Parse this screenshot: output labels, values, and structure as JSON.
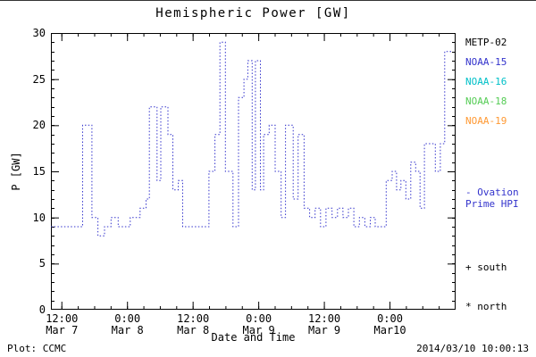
{
  "title": "Hemispheric Power [GW]",
  "footer": {
    "left": "Plot: CCMC",
    "right": "2014/03/10 10:00:13"
  },
  "legend": {
    "satellites": [
      {
        "label": "METP-02",
        "color": "#000000"
      },
      {
        "label": "NOAA-15",
        "color": "#3333CC"
      },
      {
        "label": "NOAA-16",
        "color": "#00C0C8"
      },
      {
        "label": "NOAA-18",
        "color": "#55CC55"
      },
      {
        "label": "NOAA-19",
        "color": "#FF9933"
      }
    ],
    "model": {
      "line1": "- Ovation",
      "line2": "Prime HPI",
      "color": "#3333CC"
    },
    "markers": [
      {
        "label": "+ south"
      },
      {
        "label": "* north"
      }
    ]
  },
  "chart_data": {
    "type": "line",
    "title": "Hemispheric Power [GW]",
    "xlabel": "Date and Time",
    "ylabel": "P [GW]",
    "ylim": [
      0,
      30
    ],
    "yticks": [
      0,
      5,
      10,
      15,
      20,
      25,
      30
    ],
    "y_minor_step": 1,
    "xlim_hours": [
      10,
      84
    ],
    "x_minor_step_hours": 3,
    "xticks": [
      {
        "hour": 12,
        "time": "12:00",
        "date": "Mar 7"
      },
      {
        "hour": 24,
        "time": "0:00",
        "date": "Mar 8"
      },
      {
        "hour": 36,
        "time": "12:00",
        "date": "Mar 8"
      },
      {
        "hour": 48,
        "time": "0:00",
        "date": "Mar 9"
      },
      {
        "hour": 60,
        "time": "12:00",
        "date": "Mar 9"
      },
      {
        "hour": 72,
        "time": "0:00",
        "date": "Mar10"
      }
    ],
    "series": [
      {
        "name": "Ovation Prime HPI",
        "color": "#3333CC",
        "style": "dotted-step",
        "x_unit": "hours since Mar 7 00:00",
        "points": [
          [
            10,
            9
          ],
          [
            15.8,
            20
          ],
          [
            17.5,
            10
          ],
          [
            18.6,
            8
          ],
          [
            19.8,
            9
          ],
          [
            21,
            10
          ],
          [
            22.3,
            9
          ],
          [
            24.5,
            10
          ],
          [
            26.3,
            11
          ],
          [
            27.4,
            12
          ],
          [
            28,
            22
          ],
          [
            29.4,
            14
          ],
          [
            30.1,
            22
          ],
          [
            31.4,
            19
          ],
          [
            32.3,
            13
          ],
          [
            33.3,
            14
          ],
          [
            34.1,
            9
          ],
          [
            38.9,
            15
          ],
          [
            40,
            19
          ],
          [
            40.9,
            29
          ],
          [
            41.9,
            15
          ],
          [
            43.3,
            9
          ],
          [
            44.3,
            23
          ],
          [
            45.3,
            25
          ],
          [
            46,
            27
          ],
          [
            46.8,
            13
          ],
          [
            47.4,
            27
          ],
          [
            48.3,
            13
          ],
          [
            48.9,
            19
          ],
          [
            49.9,
            20
          ],
          [
            51,
            15
          ],
          [
            52.1,
            10
          ],
          [
            52.9,
            20
          ],
          [
            54.3,
            12
          ],
          [
            55.2,
            19
          ],
          [
            56.3,
            11
          ],
          [
            57.3,
            10
          ],
          [
            58.3,
            11
          ],
          [
            59.3,
            9
          ],
          [
            60.3,
            11
          ],
          [
            61.4,
            10
          ],
          [
            62.4,
            11
          ],
          [
            63.4,
            10
          ],
          [
            64.4,
            11
          ],
          [
            65.4,
            9
          ],
          [
            66.4,
            10
          ],
          [
            67.4,
            9
          ],
          [
            68.4,
            10
          ],
          [
            69.3,
            9
          ],
          [
            71.3,
            14
          ],
          [
            72.4,
            15
          ],
          [
            73.2,
            13
          ],
          [
            74,
            14
          ],
          [
            74.9,
            12
          ],
          [
            75.8,
            16
          ],
          [
            76.7,
            15
          ],
          [
            77.5,
            11
          ],
          [
            78.3,
            18
          ],
          [
            80.3,
            15
          ],
          [
            81.2,
            18
          ],
          [
            82,
            28
          ],
          [
            83.2,
            28
          ]
        ]
      }
    ],
    "legend_position": "right",
    "grid": false
  }
}
